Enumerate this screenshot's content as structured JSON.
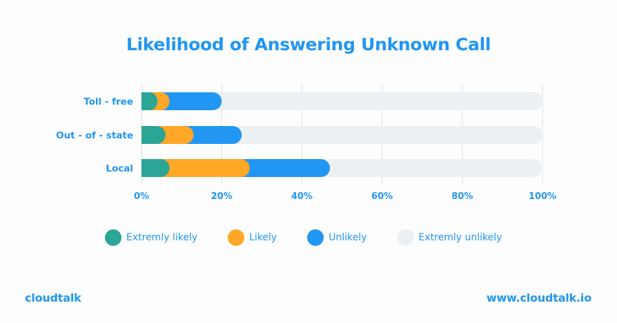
{
  "colors": {
    "accent": "#2196f3",
    "extremely_likely": "#2aa596",
    "likely": "#ffa726",
    "unlikely": "#2196f3",
    "extremely_unlikely": "#edf0f3",
    "gridline": "#e4e6e9"
  },
  "title": "Likelihood of Answering Unknown Call",
  "chart_data": {
    "type": "bar",
    "orientation": "horizontal",
    "stacked": true,
    "title": "Likelihood of Answering Unknown Call",
    "categories": [
      "Toll - free",
      "Out - of - state",
      "Local"
    ],
    "series": [
      {
        "name": "Extremly likely",
        "values": [
          4,
          6,
          7
        ]
      },
      {
        "name": "Likely",
        "values": [
          3,
          7,
          20
        ]
      },
      {
        "name": "Unlikely",
        "values": [
          13,
          12,
          20
        ]
      },
      {
        "name": "Extremly unlikely",
        "values": [
          80,
          75,
          53
        ]
      }
    ],
    "xlim": [
      0,
      100
    ],
    "xticks": [
      "0%",
      "20%",
      "40%",
      "60%",
      "80%",
      "100%"
    ],
    "xtick_values": [
      0,
      20,
      40,
      60,
      80,
      100
    ],
    "grid": "vertical",
    "legend_position": "bottom"
  },
  "legend": [
    {
      "label": "Extremly likely",
      "color": "#2aa596"
    },
    {
      "label": "Likely",
      "color": "#ffa726"
    },
    {
      "label": "Unlikely",
      "color": "#2196f3"
    },
    {
      "label": "Extremly unlikely",
      "color": "#edf0f3"
    }
  ],
  "footer": {
    "logo": "cloudtalk",
    "website": "www.cloudtalk.io"
  }
}
